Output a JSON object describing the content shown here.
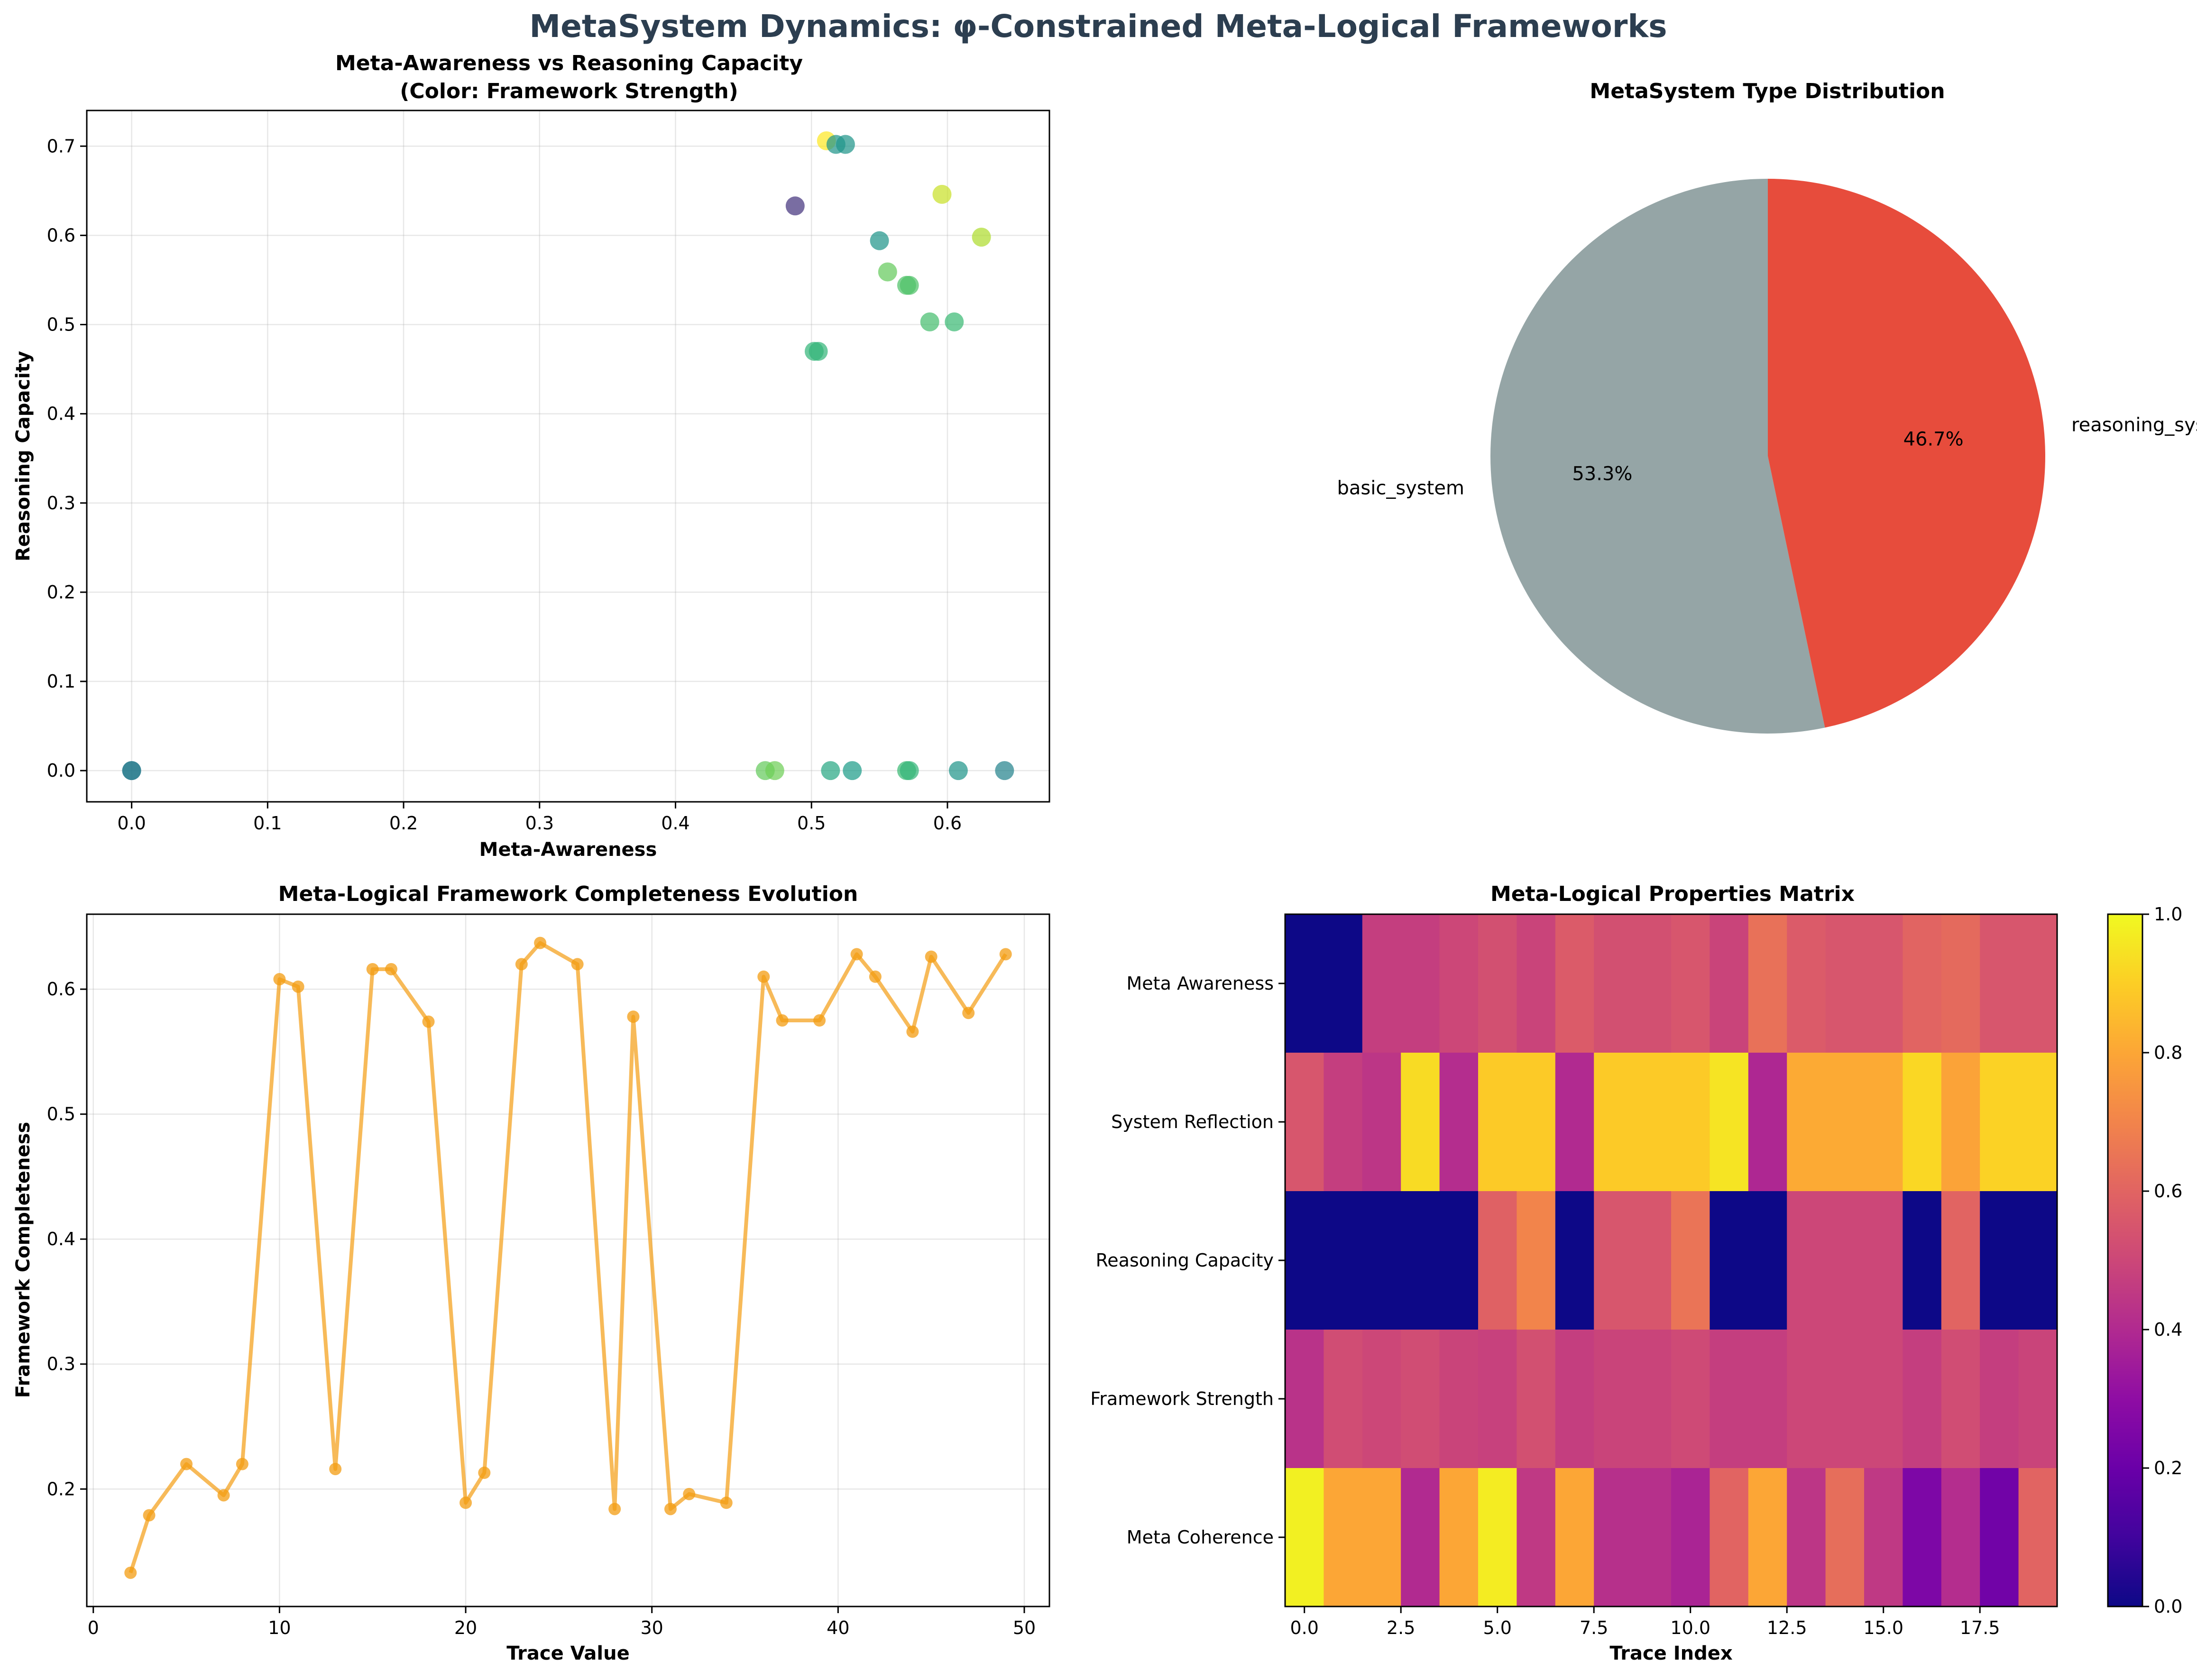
{
  "figure": {
    "title": "MetaSystem Dynamics: φ-Constrained Meta-Logical Frameworks"
  },
  "chart_data": [
    {
      "id": "scatter",
      "type": "scatter",
      "title_line1": "Meta-Awareness vs Reasoning Capacity",
      "title_line2": "(Color: Framework Strength)",
      "xlabel": "Meta-Awareness",
      "ylabel": "Reasoning Capacity",
      "xlim": [
        -0.033,
        0.675
      ],
      "ylim": [
        -0.035,
        0.74
      ],
      "grid": true,
      "colormap": "viridis",
      "xticks": [
        0.0,
        0.1,
        0.2,
        0.3,
        0.4,
        0.5,
        0.6
      ],
      "yticks": [
        0.0,
        0.1,
        0.2,
        0.3,
        0.4,
        0.5,
        0.6,
        0.7
      ],
      "points": [
        {
          "x": 0.0,
          "y": 0.0,
          "c": 0.42
        },
        {
          "x": 0.0,
          "y": 0.0,
          "c": 0.42
        },
        {
          "x": 0.466,
          "y": 0.0,
          "c": 0.76
        },
        {
          "x": 0.473,
          "y": 0.0,
          "c": 0.78
        },
        {
          "x": 0.514,
          "y": 0.0,
          "c": 0.6
        },
        {
          "x": 0.53,
          "y": 0.0,
          "c": 0.55
        },
        {
          "x": 0.57,
          "y": 0.0,
          "c": 0.68
        },
        {
          "x": 0.572,
          "y": 0.0,
          "c": 0.66
        },
        {
          "x": 0.608,
          "y": 0.0,
          "c": 0.52
        },
        {
          "x": 0.642,
          "y": 0.0,
          "c": 0.45
        },
        {
          "x": 0.502,
          "y": 0.47,
          "c": 0.66
        },
        {
          "x": 0.505,
          "y": 0.47,
          "c": 0.66
        },
        {
          "x": 0.587,
          "y": 0.503,
          "c": 0.7
        },
        {
          "x": 0.605,
          "y": 0.503,
          "c": 0.68
        },
        {
          "x": 0.57,
          "y": 0.544,
          "c": 0.72
        },
        {
          "x": 0.572,
          "y": 0.544,
          "c": 0.72
        },
        {
          "x": 0.556,
          "y": 0.559,
          "c": 0.76
        },
        {
          "x": 0.55,
          "y": 0.594,
          "c": 0.52
        },
        {
          "x": 0.625,
          "y": 0.598,
          "c": 0.88
        },
        {
          "x": 0.596,
          "y": 0.646,
          "c": 0.92
        },
        {
          "x": 0.488,
          "y": 0.633,
          "c": 0.15
        },
        {
          "x": 0.511,
          "y": 0.706,
          "c": 1.0
        },
        {
          "x": 0.518,
          "y": 0.702,
          "c": 0.52
        },
        {
          "x": 0.525,
          "y": 0.702,
          "c": 0.52
        }
      ]
    },
    {
      "id": "pie",
      "type": "pie",
      "title": "MetaSystem Type Distribution",
      "slices": [
        {
          "label": "basic_system",
          "value": 53.3,
          "pct_label": "53.3%",
          "color": "#95a5a6"
        },
        {
          "label": "reasoning_system",
          "value": 46.7,
          "pct_label": "46.7%",
          "color": "#e74c3c"
        }
      ]
    },
    {
      "id": "line",
      "type": "line",
      "title": "Meta-Logical Framework Completeness Evolution",
      "xlabel": "Trace Value",
      "ylabel": "Framework Completeness",
      "xlim": [
        -0.35,
        51.35
      ],
      "ylim": [
        0.106,
        0.66
      ],
      "grid": true,
      "color": "#f39c12",
      "xticks": [
        0,
        10,
        20,
        30,
        40,
        50
      ],
      "yticks": [
        0.2,
        0.3,
        0.4,
        0.5,
        0.6
      ],
      "x": [
        2,
        3,
        5,
        7,
        8,
        10,
        11,
        13,
        15,
        16,
        18,
        20,
        21,
        23,
        24,
        26,
        28,
        29,
        31,
        32,
        34,
        36,
        37,
        39,
        41,
        42,
        44,
        45,
        47,
        49
      ],
      "y": [
        0.133,
        0.179,
        0.22,
        0.195,
        0.22,
        0.608,
        0.602,
        0.216,
        0.616,
        0.616,
        0.574,
        0.189,
        0.213,
        0.62,
        0.637,
        0.62,
        0.184,
        0.578,
        0.184,
        0.196,
        0.189,
        0.61,
        0.575,
        0.575,
        0.628,
        0.61,
        0.566,
        0.626,
        0.581,
        0.628
      ]
    },
    {
      "id": "heatmap",
      "type": "heatmap",
      "title": "Meta-Logical Properties Matrix",
      "xlabel": "Trace Index",
      "colormap": "plasma",
      "vmin": 0.0,
      "vmax": 1.0,
      "xticks": [
        "0.0",
        "2.5",
        "5.0",
        "7.5",
        "10.0",
        "12.5",
        "15.0",
        "17.5"
      ],
      "xtick_values": [
        0,
        2.5,
        5,
        7.5,
        10,
        12.5,
        15,
        17.5
      ],
      "colorbar_ticks": [
        "0.0",
        "0.2",
        "0.4",
        "0.6",
        "0.8",
        "1.0"
      ],
      "rows": [
        "Meta Awareness",
        "System Reflection",
        "Reasoning Capacity",
        "Framework Strength",
        "Meta Coherence"
      ],
      "matrix": [
        [
          0.0,
          0.0,
          0.47,
          0.47,
          0.5,
          0.53,
          0.49,
          0.57,
          0.53,
          0.53,
          0.55,
          0.49,
          0.64,
          0.57,
          0.55,
          0.55,
          0.6,
          0.62,
          0.55,
          0.55
        ],
        [
          0.55,
          0.47,
          0.44,
          0.93,
          0.41,
          0.89,
          0.89,
          0.4,
          0.89,
          0.89,
          0.89,
          0.95,
          0.39,
          0.81,
          0.81,
          0.81,
          0.92,
          0.79,
          0.91,
          0.91
        ],
        [
          0.0,
          0.0,
          0.0,
          0.0,
          0.0,
          0.59,
          0.7,
          0.0,
          0.55,
          0.55,
          0.65,
          0.0,
          0.0,
          0.5,
          0.5,
          0.5,
          0.0,
          0.6,
          0.0,
          0.0
        ],
        [
          0.43,
          0.52,
          0.5,
          0.52,
          0.49,
          0.48,
          0.53,
          0.47,
          0.49,
          0.49,
          0.51,
          0.47,
          0.47,
          0.5,
          0.5,
          0.5,
          0.47,
          0.52,
          0.47,
          0.49
        ],
        [
          0.98,
          0.8,
          0.8,
          0.4,
          0.8,
          0.97,
          0.45,
          0.8,
          0.42,
          0.42,
          0.38,
          0.6,
          0.8,
          0.44,
          0.63,
          0.45,
          0.25,
          0.41,
          0.22,
          0.6
        ]
      ]
    }
  ]
}
